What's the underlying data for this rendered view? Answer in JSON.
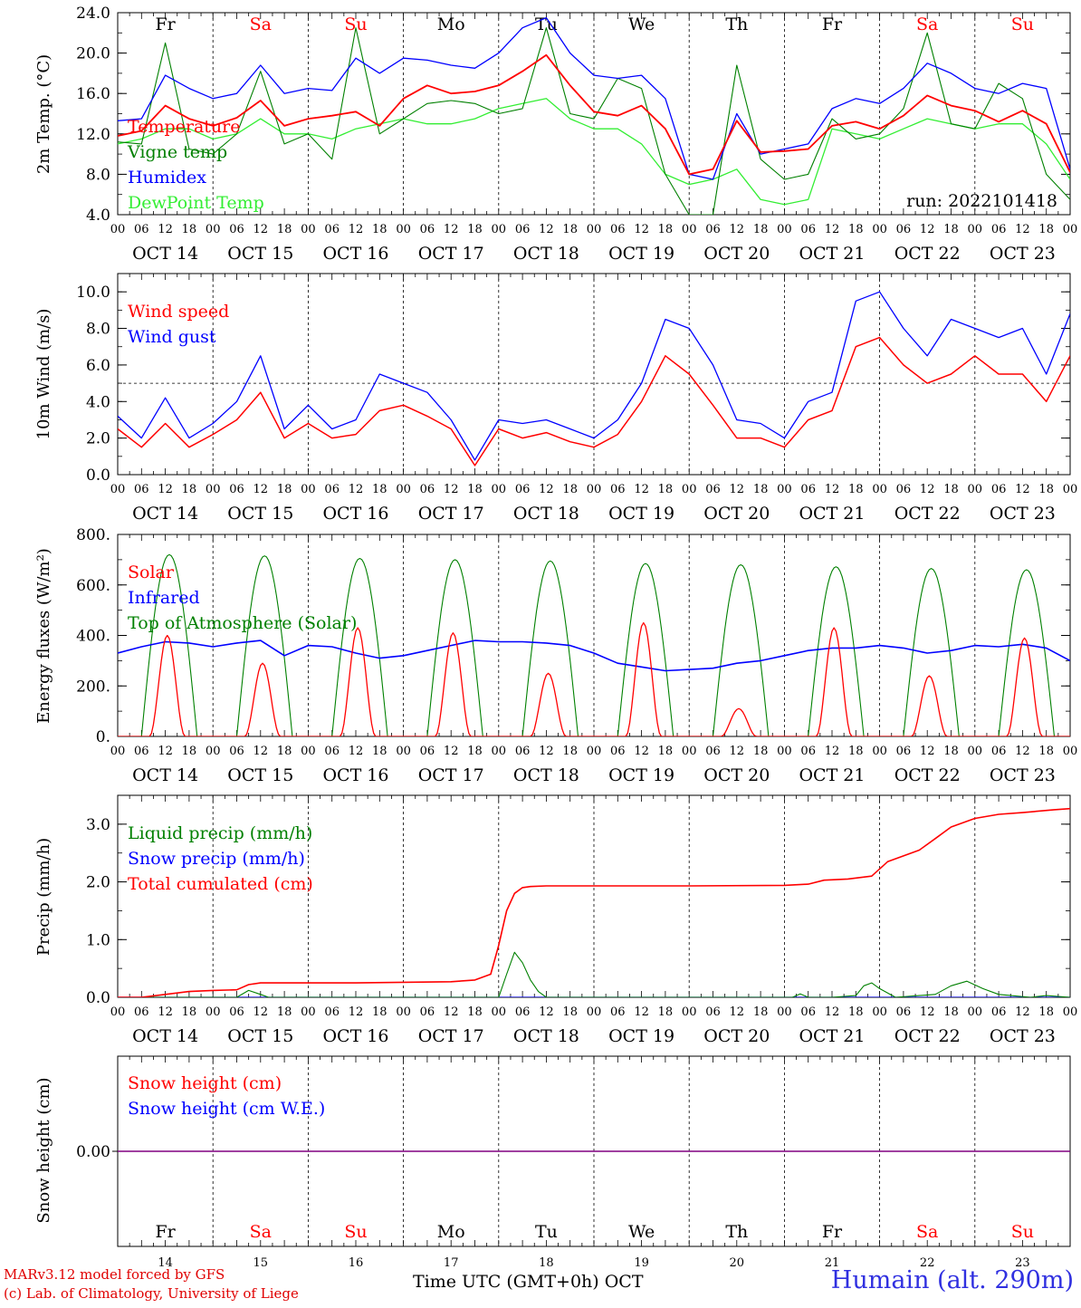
{
  "meteogram": {
    "days": [
      "Fr",
      "Sa",
      "Su",
      "Mo",
      "Tu",
      "We",
      "Th",
      "Fr",
      "Sa",
      "Su"
    ],
    "weekend_flags": [
      false,
      true,
      true,
      false,
      false,
      false,
      false,
      false,
      true,
      true
    ],
    "dates": [
      "OCT 14",
      "OCT 15",
      "OCT 16",
      "OCT 17",
      "OCT 18",
      "OCT 19",
      "OCT 20",
      "OCT 21",
      "OCT 22",
      "OCT 23"
    ],
    "date_numbers": [
      "14",
      "15",
      "16",
      "17",
      "18",
      "19",
      "20",
      "21",
      "22",
      "23"
    ],
    "hour_labels": [
      "00",
      "06",
      "12",
      "18"
    ],
    "final_hour_label": "00",
    "run_label": "run: 2022101418",
    "x_axis_title": "Time UTC (GMT+0h) OCT",
    "credit_line1": "MARv3.12 model forced by GFS",
    "credit_line2": "(c) Lab. of Climatology, University of Liege",
    "station": "Humain (alt. 290m)",
    "colors": {
      "red": "#ff0000",
      "blue": "#0000ff",
      "dark_green": "#008000",
      "light_green": "#33ee33",
      "purple": "#800080",
      "day_weekday": "#000000",
      "day_weekend": "#ff0000"
    }
  },
  "chart_data": [
    {
      "type": "line",
      "ylabel": "2m Temp. (°C)",
      "ylim": [
        4.0,
        24.0
      ],
      "yticks": [
        "4.0",
        "8.0",
        "12.0",
        "16.0",
        "20.0",
        "24.0"
      ],
      "x_unit": "hours since OCT 14 00 UTC",
      "series": [
        {
          "name": "Temperature",
          "color": "#ff0000",
          "x": [
            0,
            6,
            12,
            18,
            24,
            30,
            36,
            42,
            48,
            54,
            60,
            66,
            72,
            78,
            84,
            90,
            96,
            102,
            108,
            114,
            120,
            126,
            132,
            138,
            144,
            150,
            156,
            162,
            168,
            174,
            180,
            186,
            192,
            198,
            204,
            210,
            216,
            222,
            228,
            234,
            240
          ],
          "y": [
            11.8,
            12.3,
            14.8,
            13.5,
            12.8,
            13.6,
            15.3,
            12.8,
            13.5,
            13.8,
            14.2,
            12.8,
            15.5,
            16.8,
            16.0,
            16.2,
            16.8,
            18.2,
            19.8,
            16.8,
            14.2,
            13.8,
            14.8,
            12.5,
            8.0,
            8.5,
            13.3,
            10.2,
            10.3,
            10.5,
            12.8,
            13.2,
            12.5,
            13.8,
            15.8,
            14.8,
            14.3,
            13.2,
            14.3,
            13.0,
            8.2
          ]
        },
        {
          "name": "Vigne temp",
          "color": "#008000",
          "x": [
            0,
            6,
            12,
            18,
            24,
            30,
            36,
            42,
            48,
            54,
            60,
            66,
            72,
            78,
            84,
            90,
            96,
            102,
            108,
            114,
            120,
            126,
            132,
            138,
            144,
            150,
            156,
            162,
            168,
            174,
            180,
            186,
            192,
            198,
            204,
            210,
            216,
            222,
            228,
            234,
            240
          ],
          "y": [
            11.2,
            11.0,
            21.0,
            10.5,
            10.0,
            12.0,
            18.2,
            11.0,
            12.0,
            9.5,
            22.5,
            12.0,
            13.5,
            15.0,
            15.3,
            15.0,
            14.0,
            14.5,
            22.5,
            14.0,
            13.5,
            17.5,
            16.5,
            8.0,
            4.0,
            4.0,
            18.8,
            9.5,
            7.5,
            8.0,
            13.5,
            11.5,
            12.0,
            14.5,
            22.0,
            13.0,
            12.5,
            17.0,
            15.5,
            8.0,
            5.5
          ]
        },
        {
          "name": "Humidex",
          "color": "#0000ff",
          "x": [
            0,
            6,
            12,
            18,
            24,
            30,
            36,
            42,
            48,
            54,
            60,
            66,
            72,
            78,
            84,
            90,
            96,
            102,
            108,
            114,
            120,
            126,
            132,
            138,
            144,
            150,
            156,
            162,
            168,
            174,
            180,
            186,
            192,
            198,
            204,
            210,
            216,
            222,
            228,
            234,
            240
          ],
          "y": [
            13.3,
            13.5,
            17.8,
            16.5,
            15.5,
            16.0,
            18.8,
            16.0,
            16.5,
            16.3,
            19.5,
            18.0,
            19.5,
            19.3,
            18.8,
            18.5,
            20.0,
            22.5,
            23.5,
            20.0,
            17.8,
            17.5,
            17.8,
            15.5,
            8.0,
            7.5,
            14.0,
            10.0,
            10.5,
            11.0,
            14.5,
            15.5,
            15.0,
            16.5,
            19.0,
            18.0,
            16.5,
            16.0,
            17.0,
            16.5,
            8.5
          ]
        },
        {
          "name": "DewPoint Temp",
          "color": "#33ee33",
          "x": [
            0,
            6,
            12,
            18,
            24,
            30,
            36,
            42,
            48,
            54,
            60,
            66,
            72,
            78,
            84,
            90,
            96,
            102,
            108,
            114,
            120,
            126,
            132,
            138,
            144,
            150,
            156,
            162,
            168,
            174,
            180,
            186,
            192,
            198,
            204,
            210,
            216,
            222,
            228,
            234,
            240
          ],
          "y": [
            11.0,
            11.5,
            12.5,
            12.5,
            11.5,
            12.0,
            13.5,
            12.0,
            12.0,
            11.5,
            12.5,
            13.0,
            13.5,
            13.0,
            13.0,
            13.5,
            14.5,
            15.0,
            15.5,
            13.5,
            12.5,
            12.5,
            11.0,
            8.0,
            7.0,
            7.5,
            8.5,
            5.5,
            5.0,
            5.5,
            12.5,
            12.0,
            11.5,
            12.5,
            13.5,
            13.0,
            12.5,
            13.0,
            13.0,
            11.0,
            7.5
          ]
        }
      ]
    },
    {
      "type": "line",
      "ylabel": "10m Wind (m/s)",
      "ylim": [
        0.0,
        11.0
      ],
      "yticks": [
        "0.0",
        "2.0",
        "4.0",
        "6.0",
        "8.0",
        "10.0"
      ],
      "reference_line": 5.0,
      "x_unit": "hours since OCT 14 00 UTC",
      "series": [
        {
          "name": "Wind speed",
          "color": "#ff0000",
          "x": [
            0,
            6,
            12,
            18,
            24,
            30,
            36,
            42,
            48,
            54,
            60,
            66,
            72,
            78,
            84,
            90,
            96,
            102,
            108,
            114,
            120,
            126,
            132,
            138,
            144,
            150,
            156,
            162,
            168,
            174,
            180,
            186,
            192,
            198,
            204,
            210,
            216,
            222,
            228,
            234,
            240
          ],
          "y": [
            2.5,
            1.5,
            2.8,
            1.5,
            2.2,
            3.0,
            4.5,
            2.0,
            2.8,
            2.0,
            2.2,
            3.5,
            3.8,
            3.2,
            2.5,
            0.5,
            2.5,
            2.0,
            2.3,
            1.8,
            1.5,
            2.2,
            4.0,
            6.5,
            5.5,
            3.8,
            2.0,
            2.0,
            1.5,
            3.0,
            3.5,
            7.0,
            7.5,
            6.0,
            5.0,
            5.5,
            6.5,
            5.5,
            5.5,
            4.0,
            6.5
          ]
        },
        {
          "name": "Wind gust",
          "color": "#0000ff",
          "x": [
            0,
            6,
            12,
            18,
            24,
            30,
            36,
            42,
            48,
            54,
            60,
            66,
            72,
            78,
            84,
            90,
            96,
            102,
            108,
            114,
            120,
            126,
            132,
            138,
            144,
            150,
            156,
            162,
            168,
            174,
            180,
            186,
            192,
            198,
            204,
            210,
            216,
            222,
            228,
            234,
            240
          ],
          "y": [
            3.2,
            2.0,
            4.2,
            2.0,
            2.8,
            4.0,
            6.5,
            2.5,
            3.8,
            2.5,
            3.0,
            5.5,
            5.0,
            4.5,
            3.0,
            0.8,
            3.0,
            2.8,
            3.0,
            2.5,
            2.0,
            3.0,
            5.0,
            8.5,
            8.0,
            6.0,
            3.0,
            2.8,
            2.0,
            4.0,
            4.5,
            9.5,
            10.0,
            8.0,
            6.5,
            8.5,
            8.0,
            7.5,
            8.0,
            5.5,
            8.8
          ]
        }
      ]
    },
    {
      "type": "line",
      "ylabel": "Energy fluxes (W/m²)",
      "ylim": [
        0,
        800
      ],
      "yticks": [
        "0.",
        "200.",
        "400.",
        "600.",
        "800."
      ],
      "x_unit": "hours since OCT 14 00 UTC",
      "solar_peaks": [
        400,
        290,
        430,
        410,
        250,
        450,
        110,
        430,
        240,
        390
      ],
      "toa_peaks": [
        720,
        715,
        705,
        700,
        695,
        685,
        680,
        672,
        665,
        660
      ],
      "series": [
        {
          "name": "Solar",
          "color": "#ff0000"
        },
        {
          "name": "Infrared",
          "color": "#0000ff",
          "x": [
            0,
            6,
            12,
            18,
            24,
            30,
            36,
            42,
            48,
            54,
            60,
            66,
            72,
            78,
            84,
            90,
            96,
            102,
            108,
            114,
            120,
            126,
            132,
            138,
            144,
            150,
            156,
            162,
            168,
            174,
            180,
            186,
            192,
            198,
            204,
            210,
            216,
            222,
            228,
            234,
            240
          ],
          "y": [
            330,
            355,
            375,
            370,
            355,
            370,
            380,
            320,
            360,
            355,
            330,
            310,
            320,
            340,
            360,
            380,
            375,
            375,
            370,
            360,
            330,
            290,
            275,
            260,
            265,
            270,
            290,
            300,
            320,
            340,
            350,
            350,
            360,
            350,
            330,
            340,
            360,
            355,
            365,
            350,
            300
          ]
        },
        {
          "name": "Top of Atmosphere (Solar)",
          "color": "#008000"
        }
      ]
    },
    {
      "type": "line",
      "ylabel": "Precip (mm/h)",
      "ylim": [
        0.0,
        3.5
      ],
      "yticks": [
        "0.0",
        "1.0",
        "2.0",
        "3.0"
      ],
      "x_unit": "hours since OCT 14 00 UTC",
      "series": [
        {
          "name": "Liquid precip (mm/h)",
          "color": "#008000",
          "x": [
            0,
            30,
            33,
            36,
            38,
            96,
            98,
            100,
            102,
            104,
            106,
            108,
            110,
            114,
            118,
            170,
            172,
            174,
            176,
            180,
            186,
            188,
            190,
            192,
            196,
            206,
            210,
            214,
            218,
            222,
            230,
            234,
            240
          ],
          "y": [
            0,
            0,
            0.12,
            0.05,
            0,
            0,
            0.4,
            0.78,
            0.6,
            0.3,
            0.1,
            0,
            0,
            0,
            0,
            0,
            0.06,
            0,
            0,
            0,
            0.03,
            0.2,
            0.25,
            0.15,
            0,
            0.05,
            0.2,
            0.28,
            0.15,
            0.05,
            0,
            0.03,
            0
          ]
        },
        {
          "name": "Snow precip (mm/h)",
          "color": "#0000ff",
          "x": [
            0,
            240
          ],
          "y": [
            0,
            0
          ]
        },
        {
          "name": "Total cumulated (cm)",
          "color": "#ff0000",
          "x": [
            0,
            6,
            12,
            18,
            24,
            30,
            33,
            36,
            60,
            84,
            90,
            94,
            96,
            98,
            100,
            102,
            104,
            108,
            120,
            144,
            168,
            174,
            178,
            184,
            190,
            194,
            198,
            202,
            206,
            210,
            216,
            222,
            228,
            236,
            240
          ],
          "y": [
            0,
            0,
            0.05,
            0.1,
            0.12,
            0.13,
            0.22,
            0.25,
            0.25,
            0.27,
            0.3,
            0.4,
            0.9,
            1.5,
            1.8,
            1.9,
            1.92,
            1.93,
            1.93,
            1.93,
            1.94,
            1.96,
            2.03,
            2.05,
            2.1,
            2.35,
            2.45,
            2.55,
            2.75,
            2.95,
            3.1,
            3.17,
            3.2,
            3.25,
            3.27
          ]
        }
      ]
    },
    {
      "type": "line",
      "ylabel": "Snow height (cm)",
      "yticks": [
        "0.00"
      ],
      "x_unit": "hours since OCT 14 00 UTC",
      "series": [
        {
          "name": "Snow height (cm)",
          "color": "#ff0000",
          "x": [
            0,
            240
          ],
          "y": [
            0,
            0
          ]
        },
        {
          "name": "Snow height (cm W.E.)",
          "color": "#0000ff",
          "x": [
            0,
            240
          ],
          "y": [
            0,
            0
          ]
        }
      ]
    }
  ]
}
